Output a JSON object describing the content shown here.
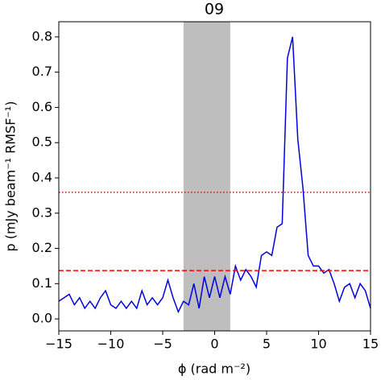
{
  "chart_data": {
    "type": "line",
    "title": "09",
    "xlabel": "ϕ (rad m⁻²)",
    "ylabel": "p (mJy beam⁻¹ RMSF⁻¹)",
    "x": [
      -15,
      -14.5,
      -14,
      -13.5,
      -13,
      -12.5,
      -12,
      -11.5,
      -11,
      -10.5,
      -10,
      -9.5,
      -9,
      -8.5,
      -8,
      -7.5,
      -7,
      -6.5,
      -6,
      -5.5,
      -5,
      -4.5,
      -4,
      -3.5,
      -3,
      -2.5,
      -2,
      -1.5,
      -1,
      -0.5,
      0,
      0.5,
      1,
      1.5,
      2,
      2.5,
      3,
      3.5,
      4,
      4.5,
      5,
      5.5,
      6,
      6.5,
      7,
      7.5,
      8,
      8.5,
      9,
      9.5,
      10,
      10.5,
      11,
      11.5,
      12,
      12.5,
      13,
      13.5,
      14,
      14.5,
      15
    ],
    "series": [
      {
        "color": "#0000dd",
        "values": [
          0.05,
          0.06,
          0.07,
          0.04,
          0.06,
          0.03,
          0.05,
          0.03,
          0.06,
          0.08,
          0.04,
          0.03,
          0.05,
          0.03,
          0.05,
          0.03,
          0.08,
          0.04,
          0.06,
          0.04,
          0.06,
          0.11,
          0.06,
          0.02,
          0.05,
          0.04,
          0.1,
          0.03,
          0.12,
          0.06,
          0.12,
          0.06,
          0.12,
          0.07,
          0.15,
          0.11,
          0.14,
          0.12,
          0.09,
          0.18,
          0.19,
          0.18,
          0.26,
          0.27,
          0.74,
          0.8,
          0.51,
          0.37,
          0.18,
          0.15,
          0.15,
          0.13,
          0.14,
          0.1,
          0.05,
          0.09,
          0.1,
          0.06,
          0.1,
          0.08,
          0.03
        ]
      }
    ],
    "vspan": {
      "range": [
        -3,
        1.5
      ],
      "color": "#bebebe"
    },
    "hlines": [
      {
        "value": 0.359,
        "color": "#ff0000",
        "style": "dotted"
      },
      {
        "value": 0.137,
        "color": "#ff0000",
        "style": "dashed"
      }
    ],
    "xlim": [
      -15,
      15
    ],
    "ylim": [
      -0.034,
      0.843
    ],
    "xticks": [
      {
        "value": -15,
        "label": "−15"
      },
      {
        "value": -10,
        "label": "−10"
      },
      {
        "value": -5,
        "label": "−5"
      },
      0,
      5,
      10,
      15
    ],
    "yticks": [
      {
        "value": 0,
        "label": "0.0"
      },
      0.1,
      0.2,
      0.3,
      0.4,
      0.5,
      0.6,
      0.7,
      0.8
    ]
  }
}
